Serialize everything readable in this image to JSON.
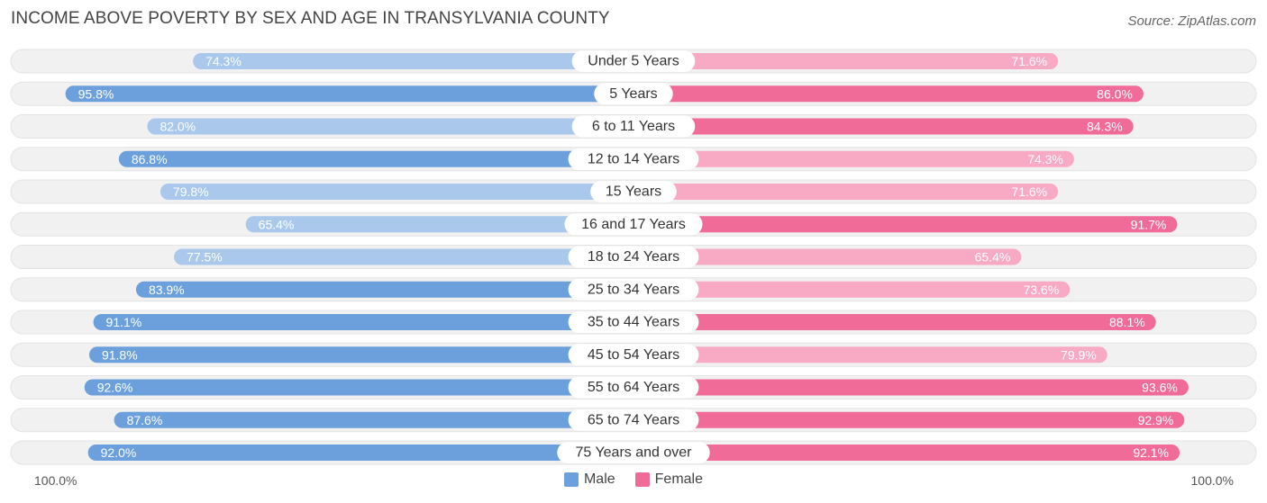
{
  "title": "INCOME ABOVE POVERTY BY SEX AND AGE IN TRANSYLVANIA COUNTY",
  "source": "Source: ZipAtlas.com",
  "axis_left_label": "100.0%",
  "axis_right_label": "100.0%",
  "colors": {
    "male_strong": "#6ba0dc",
    "male_light": "#a9c8ec",
    "female_strong": "#f06b98",
    "female_light": "#f8a9c3",
    "track": "#f1f1f1"
  },
  "chart_data": {
    "type": "bar",
    "orientation": "horizontal-diverging",
    "title": "INCOME ABOVE POVERTY BY SEX AND AGE IN TRANSYLVANIA COUNTY",
    "categories": [
      "Under 5 Years",
      "5 Years",
      "6 to 11 Years",
      "12 to 14 Years",
      "15 Years",
      "16 and 17 Years",
      "18 to 24 Years",
      "25 to 34 Years",
      "35 to 44 Years",
      "45 to 54 Years",
      "55 to 64 Years",
      "65 to 74 Years",
      "75 Years and over"
    ],
    "series": [
      {
        "name": "Male",
        "values": [
          74.3,
          95.8,
          82.0,
          86.8,
          79.8,
          65.4,
          77.5,
          83.9,
          91.1,
          91.8,
          92.6,
          87.6,
          92.0
        ]
      },
      {
        "name": "Female",
        "values": [
          71.6,
          86.0,
          84.3,
          74.3,
          71.6,
          91.7,
          65.4,
          73.6,
          88.1,
          79.9,
          93.6,
          92.9,
          92.1
        ]
      }
    ],
    "xlim": [
      0,
      100
    ],
    "legend": "bottom-center"
  }
}
